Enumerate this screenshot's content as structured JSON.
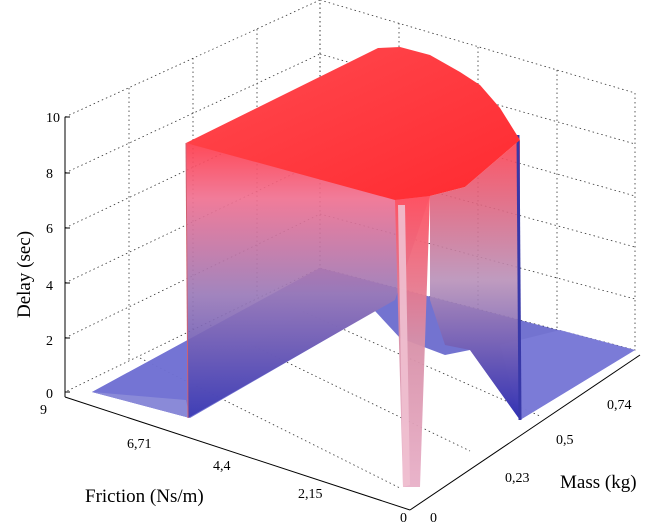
{
  "chart_data": {
    "type": "surface",
    "title": "",
    "xlabel": "Friction (Ns/m)",
    "ylabel": "Mass (kg)",
    "zlabel": "Delay (sec)",
    "friction_ticks": [
      "9",
      "6,71",
      "4,4",
      "2,15",
      "0"
    ],
    "mass_ticks": [
      "0",
      "0,23",
      "0,5",
      "0,74"
    ],
    "delay_ticks": [
      "0",
      "2",
      "4",
      "6",
      "8",
      "10"
    ],
    "friction_range": [
      0,
      9
    ],
    "mass_range": [
      0,
      1
    ],
    "delay_range": [
      0,
      10
    ],
    "grid": true,
    "colormap": [
      "#5050c8",
      "#ff3030"
    ],
    "surface": {
      "description_values": {
        "plateau_delay": 9.3,
        "base_delay": 0,
        "plateau_friction_max": 6.7,
        "plateau_mass_min": 0.2,
        "plateau_mass_max": 0.8,
        "notch_mass": 0.5
      }
    }
  }
}
